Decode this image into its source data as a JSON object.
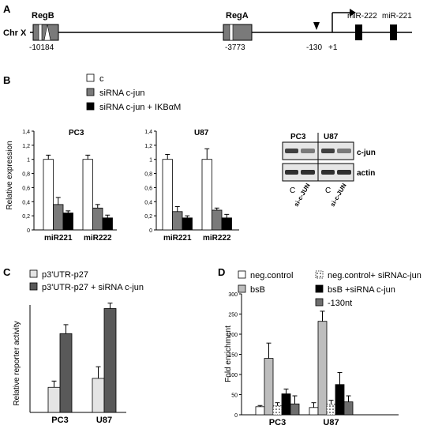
{
  "panels": {
    "A": {
      "label": "A",
      "chromosome": "Chr X",
      "regions": [
        {
          "name": "RegB",
          "position": "-10184"
        },
        {
          "name": "RegA",
          "position": "-3773"
        }
      ],
      "tss_labels": [
        "-130",
        "+1"
      ],
      "genes": [
        "miR-222",
        "miR-221"
      ]
    },
    "B": {
      "label": "B",
      "legend": [
        "c",
        "siRNA c-jun",
        "siRNA c-jun + IKBαM"
      ],
      "ylabel": "Relative expression",
      "western": {
        "columns": [
          "PC3",
          "U87"
        ],
        "bands": [
          "c-jun",
          "actin"
        ],
        "lanes": [
          "C",
          "si-c-JUN",
          "C",
          "si-c-JUN"
        ]
      }
    },
    "C": {
      "label": "C",
      "legend": [
        "p3'UTR-p27",
        "p3'UTR-p27 + siRNA c-jun"
      ],
      "ylabel": "Relative reporter activity"
    },
    "D": {
      "label": "D",
      "legend": [
        "neg.control",
        "neg.control+ siRNAc-jun",
        "bsB",
        "bsB +siRNA c-jun",
        "-130nt"
      ],
      "ylabel": "Fold enrichment"
    }
  },
  "chart_data": [
    {
      "type": "bar",
      "panel": "B",
      "title": "PC3",
      "categories": [
        "miR221",
        "miR222"
      ],
      "ylabel": "Relative expression",
      "ylim": [
        0,
        1.4
      ],
      "yticks": [
        "0",
        "0,2",
        "0,4",
        "0,6",
        "0,8",
        "1",
        "1,2",
        "1,4"
      ],
      "series": [
        {
          "name": "c",
          "values": [
            1.0,
            1.0
          ],
          "errors": [
            0.06,
            0.06
          ],
          "color": "#ffffff"
        },
        {
          "name": "siRNA c-jun",
          "values": [
            0.36,
            0.31
          ],
          "errors": [
            0.1,
            0.05
          ],
          "color": "#7a7a7a"
        },
        {
          "name": "siRNA c-jun + IKBαM",
          "values": [
            0.24,
            0.17
          ],
          "errors": [
            0.03,
            0.04
          ],
          "color": "#000000"
        }
      ]
    },
    {
      "type": "bar",
      "panel": "B",
      "title": "U87",
      "categories": [
        "miR221",
        "miR222"
      ],
      "ylim": [
        0,
        1.4
      ],
      "yticks": [
        "0",
        "0,2",
        "0,4",
        "0,6",
        "0,8",
        "1",
        "1,2",
        "1,4"
      ],
      "series": [
        {
          "name": "c",
          "values": [
            1.0,
            1.0
          ],
          "errors": [
            0.07,
            0.15
          ],
          "color": "#ffffff"
        },
        {
          "name": "siRNA c-jun",
          "values": [
            0.26,
            0.28
          ],
          "errors": [
            0.07,
            0.03
          ],
          "color": "#7a7a7a"
        },
        {
          "name": "siRNA c-jun + IKBαM",
          "values": [
            0.17,
            0.17
          ],
          "errors": [
            0.03,
            0.05
          ],
          "color": "#000000"
        }
      ]
    },
    {
      "type": "bar",
      "panel": "C",
      "categories": [
        "PC3",
        "U87"
      ],
      "ylabel": "Relative reporter activity",
      "ylim": [
        0,
        120
      ],
      "yticks": [],
      "series": [
        {
          "name": "p3'UTR-p27",
          "values": [
            28,
            38
          ],
          "errors": [
            7,
            13
          ],
          "color": "#e4e4e4"
        },
        {
          "name": "p3'UTR-p27 + siRNA c-jun",
          "values": [
            88,
            116
          ],
          "errors": [
            10,
            6
          ],
          "color": "#595959"
        }
      ]
    },
    {
      "type": "bar",
      "panel": "D",
      "categories": [
        "PC3",
        "U87"
      ],
      "ylabel": "Fold enrichment",
      "ylim": [
        0,
        300
      ],
      "yticks": [
        "0",
        "50",
        "100",
        "150",
        "200",
        "250",
        "300"
      ],
      "series": [
        {
          "name": "neg.control",
          "values": [
            20,
            18
          ],
          "errors": [
            3,
            12
          ],
          "color": "#ffffff"
        },
        {
          "name": "bsB",
          "values": [
            140,
            232
          ],
          "errors": [
            38,
            25
          ],
          "color": "#bdbdbd"
        },
        {
          "name": "neg.control+ siRNAc-jun",
          "values": [
            22,
            26
          ],
          "errors": [
            8,
            10
          ],
          "color": "#ffffff",
          "pattern": "dots"
        },
        {
          "name": "bsB +siRNA c-jun",
          "values": [
            52,
            75
          ],
          "errors": [
            12,
            30
          ],
          "color": "#000000"
        },
        {
          "name": "-130nt",
          "values": [
            27,
            32
          ],
          "errors": [
            20,
            15
          ],
          "color": "#6e6e6e"
        }
      ]
    }
  ]
}
